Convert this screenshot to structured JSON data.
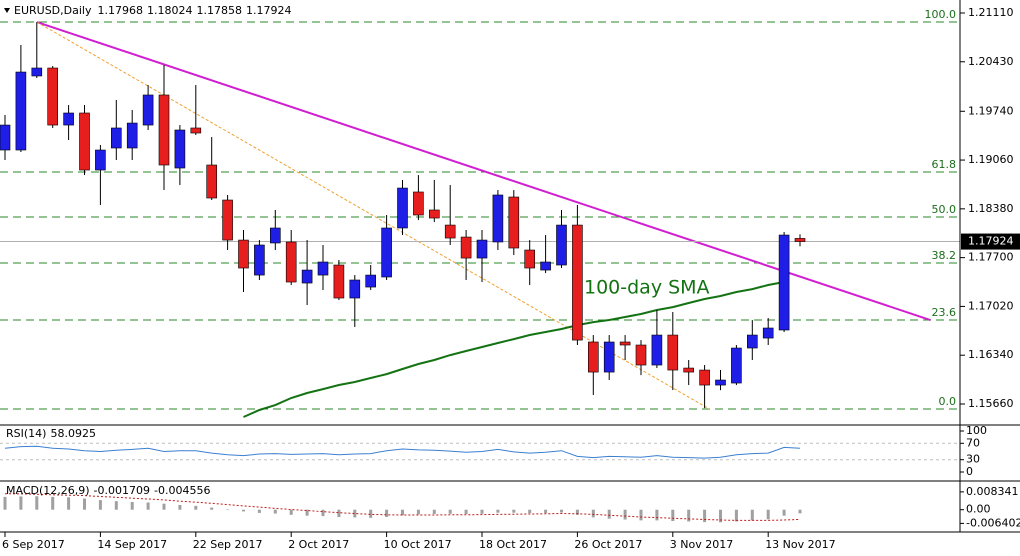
{
  "chart_data": {
    "type": "candlestick",
    "title": "EURUSD,Daily",
    "categories": [
      "6 Sep 2017",
      null,
      null,
      null,
      null,
      null,
      "14 Sep 2017",
      null,
      null,
      null,
      null,
      null,
      "22 Sep 2017",
      null,
      null,
      null,
      null,
      null,
      "2 Oct 2017",
      null,
      null,
      null,
      null,
      null,
      "10 Oct 2017",
      null,
      null,
      null,
      null,
      null,
      "18 Oct 2017",
      null,
      null,
      null,
      null,
      null,
      "26 Oct 2017",
      null,
      null,
      null,
      null,
      null,
      "3 Nov 2017",
      null,
      null,
      null,
      null,
      null,
      "13 Nov 2017",
      null,
      null
    ],
    "open": [
      1.192,
      1.192,
      1.20232,
      1.20343,
      1.19548,
      1.19716,
      1.18921,
      1.19228,
      1.19228,
      1.19548,
      1.19967,
      1.18949,
      1.19507,
      1.18991,
      1.18503,
      1.17945,
      1.17457,
      1.17904,
      1.17918,
      1.17346,
      1.17457,
      1.17597,
      1.17137,
      1.1729,
      1.1743,
      1.18113,
      1.18615,
      1.18364,
      1.18154,
      1.17987,
      1.17694,
      1.17918,
      1.18545,
      1.17806,
      1.17527,
      1.17597,
      1.18154,
      1.16524,
      1.16105,
      1.16524,
      1.16482,
      1.16203,
      1.16621,
      1.16161,
      1.16133,
      1.15924,
      1.15952,
      1.1644,
      1.16579,
      1.16691,
      1.17968
    ],
    "high": [
      1.19688,
      1.20664,
      1.20984,
      1.20371,
      1.19827,
      1.19827,
      1.1927,
      1.19897,
      1.19758,
      1.20106,
      1.20385,
      1.19548,
      1.20106,
      1.19381,
      1.18573,
      1.18085,
      1.17945,
      1.18364,
      1.18085,
      1.17945,
      1.17876,
      1.17667,
      1.17457,
      1.17597,
      1.18294,
      1.18782,
      1.18851,
      1.18782,
      1.18712,
      1.18085,
      1.18085,
      1.18642,
      1.18642,
      1.17945,
      1.18015,
      1.18364,
      1.18433,
      1.16621,
      1.16621,
      1.16621,
      1.16551,
      1.1697,
      1.16942,
      1.16273,
      1.16203,
      1.16133,
      1.16482,
      1.1683,
      1.16858,
      1.18057,
      1.18024
    ],
    "low": [
      1.19061,
      1.19172,
      1.20204,
      1.19507,
      1.19339,
      1.18851,
      1.18433,
      1.19061,
      1.19061,
      1.19479,
      1.18642,
      1.18712,
      1.19409,
      1.18503,
      1.17806,
      1.17221,
      1.17388,
      1.17806,
      1.17318,
      1.17039,
      1.17248,
      1.17109,
      1.16733,
      1.17248,
      1.17388,
      1.18015,
      1.18224,
      1.18196,
      1.17876,
      1.17388,
      1.1736,
      1.17806,
      1.17736,
      1.17318,
      1.17485,
      1.17555,
      1.16482,
      1.15785,
      1.15994,
      1.16273,
      1.16063,
      1.16161,
      1.15854,
      1.15924,
      1.15603,
      1.15854,
      1.15924,
      1.16273,
      1.16482,
      1.16663,
      1.17858
    ],
    "close": [
      1.19548,
      1.20287,
      1.20343,
      1.19548,
      1.19716,
      1.18921,
      1.192,
      1.19507,
      1.19576,
      1.19967,
      1.18991,
      1.19479,
      1.19437,
      1.18531,
      1.17945,
      1.17555,
      1.17876,
      1.18113,
      1.1736,
      1.17527,
      1.17639,
      1.17137,
      1.17388,
      1.17457,
      1.18113,
      1.1867,
      1.18294,
      1.18252,
      1.17973,
      1.17694,
      1.17945,
      1.18573,
      1.17834,
      1.17555,
      1.17639,
      1.18154,
      1.16551,
      1.16105,
      1.16524,
      1.16482,
      1.16203,
      1.16621,
      1.16133,
      1.16105,
      1.15924,
      1.15994,
      1.1644,
      1.16621,
      1.16719,
      1.18015,
      1.17924
    ],
    "up_color": "#1e1ee6",
    "down_color": "#e61e1e",
    "ylim": [
      1.15395,
      1.21291
    ],
    "yticks": [
      {
        "value": 1.2111,
        "label": "1.21110"
      },
      {
        "value": 1.2043,
        "label": "1.20430"
      },
      {
        "value": 1.1974,
        "label": "1.19740"
      },
      {
        "value": 1.1906,
        "label": "1.19060"
      },
      {
        "value": 1.1838,
        "label": "1.18380"
      },
      {
        "value": 1.177,
        "label": "1.17700"
      },
      {
        "value": 1.1702,
        "label": "1.17020"
      },
      {
        "value": 1.1634,
        "label": "1.16340"
      },
      {
        "value": 1.1566,
        "label": "1.15660"
      }
    ],
    "current_price": 1.17924,
    "sma": {
      "name": "100-day SMA",
      "color": "#137313",
      "values": [
        null,
        null,
        null,
        null,
        null,
        null,
        null,
        null,
        null,
        null,
        null,
        null,
        null,
        null,
        null,
        1.15478,
        1.15576,
        1.15645,
        1.15743,
        1.15813,
        1.15868,
        1.15924,
        1.15966,
        1.16022,
        1.16077,
        1.16147,
        1.16217,
        1.16273,
        1.16342,
        1.16398,
        1.16454,
        1.1651,
        1.16565,
        1.16621,
        1.16663,
        1.16705,
        1.1676,
        1.16802,
        1.1683,
        1.16872,
        1.16914,
        1.1697,
        1.17011,
        1.17067,
        1.17123,
        1.17165,
        1.17221,
        1.17262,
        1.17318,
        1.1736,
        null
      ]
    },
    "fibonacci": {
      "color": "#2a8a2a",
      "levels": [
        {
          "label": "100.0",
          "price": 1.20984
        },
        {
          "label": "61.8",
          "price": 1.18893
        },
        {
          "label": "50.0",
          "price": 1.18266
        },
        {
          "label": "38.2",
          "price": 1.17625
        },
        {
          "label": "23.6",
          "price": 1.1683
        },
        {
          "label": "0.0",
          "price": 1.1559
        }
      ]
    },
    "trendlines": [
      {
        "color": "#d21ed2",
        "x": [
          2,
          58.2
        ],
        "y": [
          1.20984,
          1.1683
        ]
      },
      {
        "color": "#f0a030",
        "x": [
          2,
          44.3
        ],
        "y": [
          1.20984,
          1.1559
        ]
      }
    ],
    "rsi": {
      "name": "RSI(14)",
      "color": "#3a7fd0",
      "ylim": [
        0,
        100
      ],
      "yticks": [
        100,
        70,
        30,
        0
      ],
      "values": [
        58,
        62,
        63,
        58,
        56,
        52,
        50,
        53,
        55,
        58,
        50,
        52,
        52,
        46,
        42,
        40,
        44,
        45,
        43,
        44,
        45,
        42,
        44,
        45,
        52,
        56,
        54,
        53,
        51,
        48,
        50,
        55,
        49,
        46,
        48,
        52,
        38,
        35,
        38,
        37,
        36,
        40,
        36,
        35,
        34,
        36,
        42,
        45,
        46,
        60,
        58.0925
      ]
    },
    "macd": {
      "name": "MACD(12,26,9)",
      "hist_color": "#a0a0a0",
      "signal_color": "#c01818",
      "ylim": [
        -0.0095,
        0.0125
      ],
      "yticks": [
        0.008341,
        {
          "value": 0,
          "label": "0.00"
        },
        -0.006402
      ],
      "values": [
        0.006,
        0.0062,
        0.0063,
        0.006,
        0.0058,
        0.0052,
        0.0045,
        0.004,
        0.0036,
        0.0034,
        0.0028,
        0.0022,
        0.0018,
        0.001,
        0.0002,
        -0.0008,
        -0.0015,
        -0.0018,
        -0.0024,
        -0.0028,
        -0.003,
        -0.0034,
        -0.0036,
        -0.0038,
        -0.0034,
        -0.0026,
        -0.0022,
        -0.002,
        -0.0019,
        -0.002,
        -0.0019,
        -0.0014,
        -0.0014,
        -0.0016,
        -0.0016,
        -0.0013,
        -0.0024,
        -0.0036,
        -0.0042,
        -0.0046,
        -0.005,
        -0.005,
        -0.0053,
        -0.0055,
        -0.0058,
        -0.0059,
        -0.0055,
        -0.005,
        -0.0045,
        -0.0028,
        -0.001709
      ],
      "signal": [
        0.0075,
        0.0074,
        0.0072,
        0.007,
        0.0068,
        0.0066,
        0.0062,
        0.0058,
        0.0054,
        0.005,
        0.0046,
        0.004,
        0.0035,
        0.003,
        0.0024,
        0.0018,
        0.0012,
        0.0006,
        0.0001,
        -0.0004,
        -0.0009,
        -0.0014,
        -0.0018,
        -0.0022,
        -0.0024,
        -0.0025,
        -0.0025,
        -0.0025,
        -0.0024,
        -0.0024,
        -0.0023,
        -0.0022,
        -0.0021,
        -0.002,
        -0.0019,
        -0.0018,
        -0.0019,
        -0.0022,
        -0.0026,
        -0.003,
        -0.0034,
        -0.0037,
        -0.004,
        -0.0043,
        -0.0046,
        -0.0048,
        -0.005,
        -0.005,
        -0.005,
        -0.0048,
        -0.004556
      ]
    }
  }
}
